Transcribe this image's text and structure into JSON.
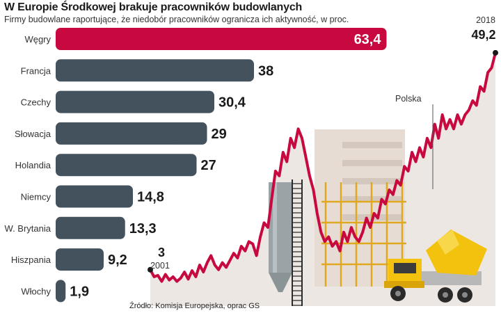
{
  "chart_data": [
    {
      "type": "bar",
      "orientation": "horizontal",
      "title": "W Europie Środkowej brakuje pracowników budowlanych",
      "subtitle": "Firmy budowlane raportujące, że niedobór pracowników ogranicza ich aktywność, w proc.",
      "categories": [
        "Węgry",
        "Francja",
        "Czechy",
        "Słowacja",
        "Holandia",
        "Niemcy",
        "W. Brytania",
        "Hiszpania",
        "Włochy"
      ],
      "values": [
        63.4,
        38,
        30.4,
        29,
        27,
        14.8,
        13.3,
        9.2,
        1.9
      ],
      "value_labels": [
        "63,4",
        "38",
        "30,4",
        "29",
        "27",
        "14,8",
        "13,3",
        "9,2",
        "1,9"
      ],
      "highlight_category": "Węgry",
      "colors": {
        "highlight": "#c8093f",
        "bar": "#44525e"
      }
    },
    {
      "type": "line",
      "series_name": "Polska",
      "x_start_label": "2001",
      "x_end_label": "2018",
      "start_value": 3,
      "start_value_label": "3",
      "end_value": 49.2,
      "end_value_label": "49,2",
      "values": [
        3,
        1.5,
        1.8,
        0.5,
        2,
        0.8,
        1.5,
        0.5,
        1.2,
        2.5,
        1,
        2.8,
        1.5,
        4,
        2.5,
        4.5,
        6,
        4,
        3,
        4.5,
        3.5,
        5,
        6.5,
        5.5,
        8,
        7,
        9,
        8.5,
        6,
        10,
        13,
        12,
        18,
        24,
        23,
        28,
        26,
        31,
        29,
        33,
        31,
        27,
        23,
        20,
        15,
        11,
        9,
        10,
        8,
        9,
        7,
        11,
        9,
        12,
        10,
        9,
        11,
        14,
        12,
        15,
        14,
        18,
        17,
        20,
        19,
        22,
        21,
        25,
        24,
        28,
        26,
        29,
        27,
        31,
        29,
        34,
        31,
        36,
        33,
        35,
        33,
        36,
        34,
        36,
        37,
        39,
        38,
        42,
        41,
        45,
        46,
        49.2
      ],
      "colors": {
        "line": "#c8093f"
      }
    }
  ],
  "source": "Źródło: Komisja Europejska, oprac GS"
}
